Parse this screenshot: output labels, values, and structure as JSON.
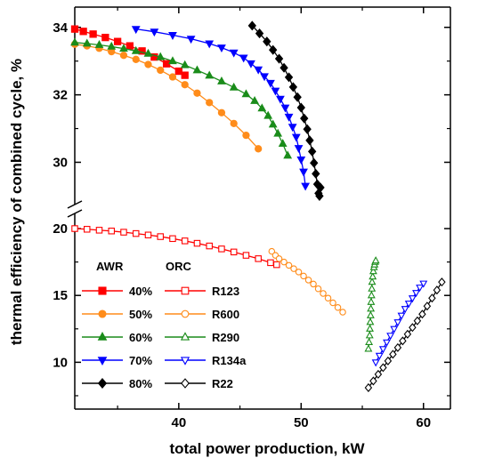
{
  "chart_data": {
    "type": "scatter",
    "xlabel": "total power production, kW",
    "ylabel": "thermal efficiency of combined cycle, %",
    "xlim": [
      31.5,
      62.2
    ],
    "x_ticks": [
      "30",
      "40",
      "50",
      "60"
    ],
    "x_tick_values": [
      30,
      40,
      50,
      60
    ],
    "y_axis_broken": true,
    "upper_ylim": [
      28.8,
      34.6
    ],
    "upper_y_ticks": [
      "30",
      "32",
      "34"
    ],
    "upper_y_tick_values": [
      30,
      32,
      34
    ],
    "lower_ylim": [
      6.5,
      21.0
    ],
    "lower_y_ticks": [
      "10",
      "15",
      "20"
    ],
    "lower_y_tick_values": [
      10,
      15,
      20
    ],
    "grid": false,
    "legend": {
      "placement": "bottom-left",
      "headers": [
        "AWR",
        "ORC"
      ]
    },
    "series": [
      {
        "name": "40%",
        "group": "AWR",
        "panel": "upper",
        "color": "#ff0000",
        "marker": "square",
        "filled": true,
        "x": [
          31.5,
          32.2,
          33.0,
          34.0,
          35.0,
          36.0,
          37.0,
          38.0,
          39.0,
          40.0,
          40.5
        ],
        "y": [
          33.95,
          33.88,
          33.8,
          33.7,
          33.58,
          33.45,
          33.3,
          33.12,
          32.92,
          32.7,
          32.58
        ]
      },
      {
        "name": "50%",
        "group": "AWR",
        "panel": "upper",
        "color": "#ff8c1a",
        "marker": "circle",
        "filled": true,
        "x": [
          31.5,
          32.5,
          33.5,
          34.5,
          35.5,
          36.5,
          37.5,
          38.5,
          39.5,
          40.5,
          41.5,
          42.5,
          43.5,
          44.5,
          45.5,
          46.5
        ],
        "y": [
          33.5,
          33.45,
          33.38,
          33.28,
          33.17,
          33.05,
          32.9,
          32.73,
          32.53,
          32.3,
          32.05,
          31.77,
          31.47,
          31.15,
          30.8,
          30.4
        ]
      },
      {
        "name": "60%",
        "group": "AWR",
        "panel": "upper",
        "color": "#1a8c1a",
        "marker": "triangle-up",
        "filled": true,
        "x": [
          31.5,
          32.5,
          33.5,
          34.5,
          35.5,
          36.5,
          37.5,
          38.5,
          39.5,
          40.5,
          41.5,
          42.5,
          43.5,
          44.5,
          45.5,
          46.2,
          46.8,
          47.3,
          47.7,
          48.1,
          48.5,
          48.9
        ],
        "y": [
          33.55,
          33.52,
          33.48,
          33.43,
          33.37,
          33.3,
          33.22,
          33.12,
          33.0,
          32.88,
          32.73,
          32.57,
          32.4,
          32.22,
          32.02,
          31.82,
          31.6,
          31.38,
          31.12,
          30.85,
          30.55,
          30.2
        ]
      },
      {
        "name": "70%",
        "group": "AWR",
        "panel": "upper",
        "color": "#0000ff",
        "marker": "triangle-down",
        "filled": true,
        "x": [
          36.5,
          38.0,
          39.5,
          41.0,
          42.5,
          43.5,
          44.5,
          45.3,
          45.9,
          46.5,
          47.0,
          47.5,
          47.9,
          48.3,
          48.7,
          49.0,
          49.3,
          49.6,
          49.8,
          50.0,
          50.2,
          50.35
        ],
        "y": [
          33.95,
          33.87,
          33.77,
          33.66,
          33.52,
          33.4,
          33.25,
          33.1,
          32.93,
          32.75,
          32.55,
          32.35,
          32.12,
          31.88,
          31.62,
          31.35,
          31.05,
          30.75,
          30.42,
          30.08,
          29.72,
          29.3
        ]
      },
      {
        "name": "80%",
        "group": "AWR",
        "panel": "upper",
        "color": "#000000",
        "marker": "diamond",
        "filled": true,
        "x": [
          46.0,
          46.6,
          47.2,
          47.7,
          48.2,
          48.6,
          49.0,
          49.35,
          49.7,
          50.0,
          50.25,
          50.5,
          50.7,
          50.9,
          51.05,
          51.2,
          51.32,
          51.42,
          51.5,
          51.58
        ],
        "y": [
          34.05,
          33.82,
          33.58,
          33.33,
          33.07,
          32.8,
          32.52,
          32.23,
          31.93,
          31.62,
          31.3,
          30.98,
          30.65,
          30.32,
          29.98,
          29.66,
          29.35,
          29.08,
          29.0,
          29.25
        ]
      },
      {
        "name": "R123",
        "group": "ORC",
        "panel": "lower",
        "color": "#ff0000",
        "marker": "square",
        "filled": false,
        "x": [
          31.5,
          32.5,
          33.5,
          34.5,
          35.5,
          36.5,
          37.5,
          38.5,
          39.5,
          40.5,
          41.5,
          42.5,
          43.5,
          44.5,
          45.5,
          46.5,
          47.5,
          48.0
        ],
        "y": [
          20.0,
          19.95,
          19.88,
          19.82,
          19.73,
          19.63,
          19.52,
          19.4,
          19.25,
          19.08,
          18.9,
          18.7,
          18.48,
          18.25,
          18.0,
          17.75,
          17.45,
          17.3
        ]
      },
      {
        "name": "R600",
        "group": "ORC",
        "panel": "lower",
        "color": "#ff8c1a",
        "marker": "circle",
        "filled": false,
        "x": [
          47.6,
          47.9,
          48.2,
          48.6,
          49.0,
          49.4,
          49.8,
          50.2,
          50.6,
          51.0,
          51.4,
          51.8,
          52.2,
          52.6,
          53.0,
          53.4
        ],
        "y": [
          18.3,
          18.0,
          17.75,
          17.5,
          17.25,
          17.0,
          16.75,
          16.45,
          16.15,
          15.85,
          15.5,
          15.15,
          14.8,
          14.45,
          14.1,
          13.75
        ]
      },
      {
        "name": "R290",
        "group": "ORC",
        "panel": "lower",
        "color": "#1a8c1a",
        "marker": "triangle-up",
        "filled": false,
        "x": [
          55.5,
          55.55,
          55.6,
          55.62,
          55.65,
          55.68,
          55.7,
          55.72,
          55.75,
          55.78,
          55.8,
          55.85,
          55.9,
          55.95,
          56.0,
          56.05,
          56.1
        ],
        "y": [
          11.0,
          11.5,
          12.0,
          12.5,
          13.0,
          13.5,
          14.0,
          14.5,
          15.0,
          15.5,
          16.0,
          16.4,
          16.8,
          17.1,
          17.3,
          17.5,
          17.6
        ]
      },
      {
        "name": "R134a",
        "group": "ORC",
        "panel": "lower",
        "color": "#0000ff",
        "marker": "triangle-down",
        "filled": false,
        "x": [
          56.1,
          56.4,
          56.7,
          57.0,
          57.3,
          57.6,
          57.9,
          58.2,
          58.5,
          58.8,
          59.1,
          59.4,
          59.7,
          60.0
        ],
        "y": [
          10.0,
          10.5,
          11.0,
          11.5,
          12.0,
          12.5,
          13.0,
          13.5,
          14.0,
          14.4,
          14.8,
          15.2,
          15.6,
          15.9
        ]
      },
      {
        "name": "R22",
        "group": "ORC",
        "panel": "lower",
        "color": "#000000",
        "marker": "diamond",
        "filled": false,
        "x": [
          55.5,
          55.9,
          56.3,
          56.7,
          57.1,
          57.5,
          57.9,
          58.3,
          58.7,
          59.1,
          59.5,
          59.9,
          60.3,
          60.7,
          61.1,
          61.5
        ],
        "y": [
          8.1,
          8.6,
          9.1,
          9.6,
          10.1,
          10.6,
          11.1,
          11.6,
          12.1,
          12.6,
          13.1,
          13.6,
          14.2,
          14.8,
          15.4,
          16.0
        ]
      }
    ]
  }
}
